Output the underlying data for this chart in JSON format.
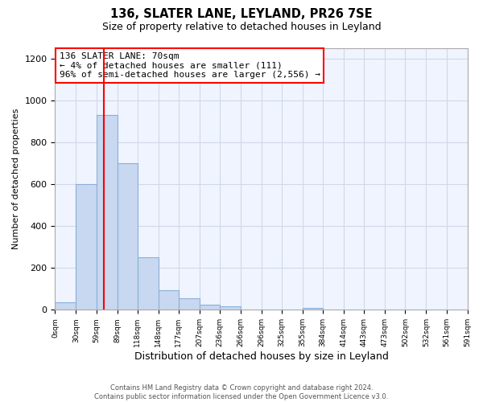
{
  "title": "136, SLATER LANE, LEYLAND, PR26 7SE",
  "subtitle": "Size of property relative to detached houses in Leyland",
  "xlabel": "Distribution of detached houses by size in Leyland",
  "ylabel": "Number of detached properties",
  "bin_edges": [
    0,
    30,
    59,
    89,
    118,
    148,
    177,
    207,
    236,
    266,
    296,
    325,
    355,
    384,
    414,
    443,
    473,
    502,
    532,
    561,
    591
  ],
  "bar_heights": [
    35,
    600,
    930,
    700,
    250,
    95,
    55,
    25,
    18,
    0,
    0,
    0,
    10,
    0,
    0,
    0,
    0,
    0,
    0,
    0
  ],
  "bar_color": "#c8d8f0",
  "bar_edgecolor": "#8ab0d8",
  "vline_x": 70,
  "vline_color": "red",
  "annotation_text": "136 SLATER LANE: 70sqm\n← 4% of detached houses are smaller (111)\n96% of semi-detached houses are larger (2,556) →",
  "annotation_bbox_edgecolor": "red",
  "annotation_bbox_facecolor": "white",
  "ylim": [
    0,
    1250
  ],
  "tick_labels": [
    "0sqm",
    "30sqm",
    "59sqm",
    "89sqm",
    "118sqm",
    "148sqm",
    "177sqm",
    "207sqm",
    "236sqm",
    "266sqm",
    "296sqm",
    "325sqm",
    "355sqm",
    "384sqm",
    "414sqm",
    "443sqm",
    "473sqm",
    "502sqm",
    "532sqm",
    "561sqm",
    "591sqm"
  ],
  "footnote": "Contains HM Land Registry data © Crown copyright and database right 2024.\nContains public sector information licensed under the Open Government Licence v3.0.",
  "background_color": "#ffffff",
  "plot_bg_color": "#f0f4ff",
  "grid_color": "#d0d8e8"
}
